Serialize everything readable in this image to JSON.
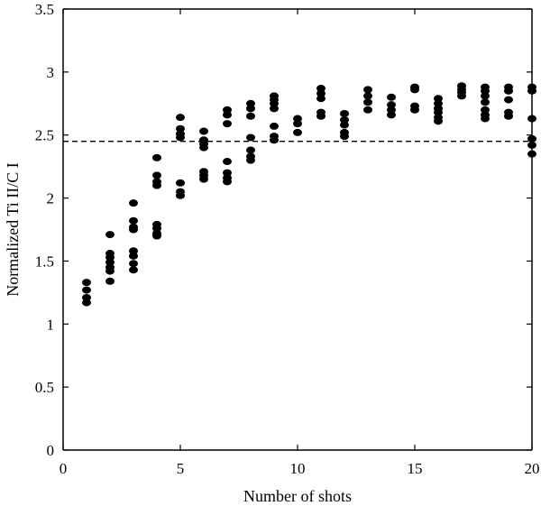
{
  "chart_data": {
    "type": "scatter",
    "xlabel": "Number of shots",
    "ylabel": "Normalized Ti II/C I",
    "xlim": [
      0,
      20
    ],
    "ylim": [
      0,
      3.5
    ],
    "x_ticks": [
      0,
      5,
      10,
      15,
      20
    ],
    "y_ticks": [
      0,
      0.5,
      1,
      1.5,
      2,
      2.5,
      3,
      3.5
    ],
    "x_tick_labels": [
      "0",
      "5",
      "10",
      "15",
      "20"
    ],
    "y_tick_labels": [
      "0",
      "0.5",
      "1",
      "1.5",
      "2",
      "2.5",
      "3",
      "3.5"
    ],
    "grid": false,
    "reference_line": {
      "y": 2.45,
      "style": "dashed"
    },
    "points": [
      {
        "x": 1,
        "y": 1.33
      },
      {
        "x": 1,
        "y": 1.27
      },
      {
        "x": 1,
        "y": 1.21
      },
      {
        "x": 1,
        "y": 1.17
      },
      {
        "x": 2,
        "y": 1.71
      },
      {
        "x": 2,
        "y": 1.56
      },
      {
        "x": 2,
        "y": 1.53
      },
      {
        "x": 2,
        "y": 1.49
      },
      {
        "x": 2,
        "y": 1.45
      },
      {
        "x": 2,
        "y": 1.42
      },
      {
        "x": 2,
        "y": 1.34
      },
      {
        "x": 3,
        "y": 1.96
      },
      {
        "x": 3,
        "y": 1.82
      },
      {
        "x": 3,
        "y": 1.77
      },
      {
        "x": 3,
        "y": 1.75
      },
      {
        "x": 3,
        "y": 1.58
      },
      {
        "x": 3,
        "y": 1.54
      },
      {
        "x": 3,
        "y": 1.48
      },
      {
        "x": 3,
        "y": 1.43
      },
      {
        "x": 4,
        "y": 2.32
      },
      {
        "x": 4,
        "y": 2.18
      },
      {
        "x": 4,
        "y": 2.13
      },
      {
        "x": 4,
        "y": 2.1
      },
      {
        "x": 4,
        "y": 1.79
      },
      {
        "x": 4,
        "y": 1.76
      },
      {
        "x": 4,
        "y": 1.72
      },
      {
        "x": 4,
        "y": 1.7
      },
      {
        "x": 5,
        "y": 2.64
      },
      {
        "x": 5,
        "y": 2.55
      },
      {
        "x": 5,
        "y": 2.51
      },
      {
        "x": 5,
        "y": 2.48
      },
      {
        "x": 5,
        "y": 2.12
      },
      {
        "x": 5,
        "y": 2.05
      },
      {
        "x": 5,
        "y": 2.02
      },
      {
        "x": 6,
        "y": 2.53
      },
      {
        "x": 6,
        "y": 2.46
      },
      {
        "x": 6,
        "y": 2.43
      },
      {
        "x": 6,
        "y": 2.4
      },
      {
        "x": 6,
        "y": 2.21
      },
      {
        "x": 6,
        "y": 2.18
      },
      {
        "x": 6,
        "y": 2.15
      },
      {
        "x": 7,
        "y": 2.7
      },
      {
        "x": 7,
        "y": 2.66
      },
      {
        "x": 7,
        "y": 2.59
      },
      {
        "x": 7,
        "y": 2.29
      },
      {
        "x": 7,
        "y": 2.2
      },
      {
        "x": 7,
        "y": 2.16
      },
      {
        "x": 7,
        "y": 2.13
      },
      {
        "x": 8,
        "y": 2.75
      },
      {
        "x": 8,
        "y": 2.71
      },
      {
        "x": 8,
        "y": 2.65
      },
      {
        "x": 8,
        "y": 2.48
      },
      {
        "x": 8,
        "y": 2.38
      },
      {
        "x": 8,
        "y": 2.33
      },
      {
        "x": 8,
        "y": 2.3
      },
      {
        "x": 9,
        "y": 2.81
      },
      {
        "x": 9,
        "y": 2.78
      },
      {
        "x": 9,
        "y": 2.75
      },
      {
        "x": 9,
        "y": 2.71
      },
      {
        "x": 9,
        "y": 2.57
      },
      {
        "x": 9,
        "y": 2.49
      },
      {
        "x": 9,
        "y": 2.46
      },
      {
        "x": 10,
        "y": 2.63
      },
      {
        "x": 10,
        "y": 2.59
      },
      {
        "x": 10,
        "y": 2.52
      },
      {
        "x": 11,
        "y": 2.87
      },
      {
        "x": 11,
        "y": 2.83
      },
      {
        "x": 11,
        "y": 2.79
      },
      {
        "x": 11,
        "y": 2.68
      },
      {
        "x": 11,
        "y": 2.65
      },
      {
        "x": 12,
        "y": 2.67
      },
      {
        "x": 12,
        "y": 2.62
      },
      {
        "x": 12,
        "y": 2.58
      },
      {
        "x": 12,
        "y": 2.52
      },
      {
        "x": 12,
        "y": 2.49
      },
      {
        "x": 13,
        "y": 2.86
      },
      {
        "x": 13,
        "y": 2.81
      },
      {
        "x": 13,
        "y": 2.76
      },
      {
        "x": 13,
        "y": 2.7
      },
      {
        "x": 14,
        "y": 2.8
      },
      {
        "x": 14,
        "y": 2.74
      },
      {
        "x": 14,
        "y": 2.7
      },
      {
        "x": 14,
        "y": 2.66
      },
      {
        "x": 15,
        "y": 2.88
      },
      {
        "x": 15,
        "y": 2.86
      },
      {
        "x": 15,
        "y": 2.73
      },
      {
        "x": 15,
        "y": 2.7
      },
      {
        "x": 16,
        "y": 2.79
      },
      {
        "x": 16,
        "y": 2.75
      },
      {
        "x": 16,
        "y": 2.71
      },
      {
        "x": 16,
        "y": 2.68
      },
      {
        "x": 16,
        "y": 2.64
      },
      {
        "x": 16,
        "y": 2.61
      },
      {
        "x": 17,
        "y": 2.89
      },
      {
        "x": 17,
        "y": 2.86
      },
      {
        "x": 17,
        "y": 2.84
      },
      {
        "x": 17,
        "y": 2.81
      },
      {
        "x": 18,
        "y": 2.88
      },
      {
        "x": 18,
        "y": 2.85
      },
      {
        "x": 18,
        "y": 2.81
      },
      {
        "x": 18,
        "y": 2.76
      },
      {
        "x": 18,
        "y": 2.7
      },
      {
        "x": 18,
        "y": 2.66
      },
      {
        "x": 18,
        "y": 2.63
      },
      {
        "x": 19,
        "y": 2.88
      },
      {
        "x": 19,
        "y": 2.85
      },
      {
        "x": 19,
        "y": 2.78
      },
      {
        "x": 19,
        "y": 2.68
      },
      {
        "x": 19,
        "y": 2.65
      },
      {
        "x": 20,
        "y": 2.88
      },
      {
        "x": 20,
        "y": 2.85
      },
      {
        "x": 20,
        "y": 2.63
      },
      {
        "x": 20,
        "y": 2.47
      },
      {
        "x": 20,
        "y": 2.42
      },
      {
        "x": 20,
        "y": 2.35
      }
    ]
  }
}
